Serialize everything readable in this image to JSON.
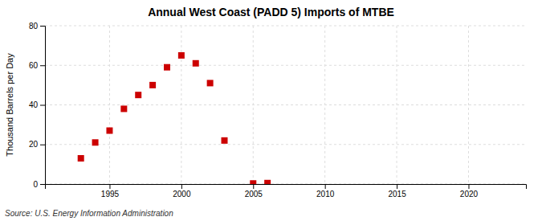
{
  "chart_data": {
    "type": "scatter",
    "title": "Annual West Coast (PADD 5) Imports of MTBE",
    "ylabel": "Thousand Barrels per Day",
    "annotations": [
      "Source: U.S. Energy Information Administration"
    ],
    "x": [
      1993,
      1994,
      1995,
      1996,
      1997,
      1998,
      1999,
      2000,
      2001,
      2002,
      2003,
      2005,
      2006
    ],
    "values": [
      13,
      21,
      27,
      38,
      45,
      50,
      59,
      65,
      61,
      51,
      22,
      0.3,
      0.5
    ],
    "color": "#cc0000",
    "marker": "square",
    "xlim": [
      1990.5,
      2024
    ],
    "ylim": [
      0,
      80
    ],
    "xticks": [
      1995,
      2000,
      2005,
      2010,
      2015,
      2020
    ],
    "yticks": [
      0,
      20,
      40,
      60,
      80
    ],
    "grid": true
  }
}
